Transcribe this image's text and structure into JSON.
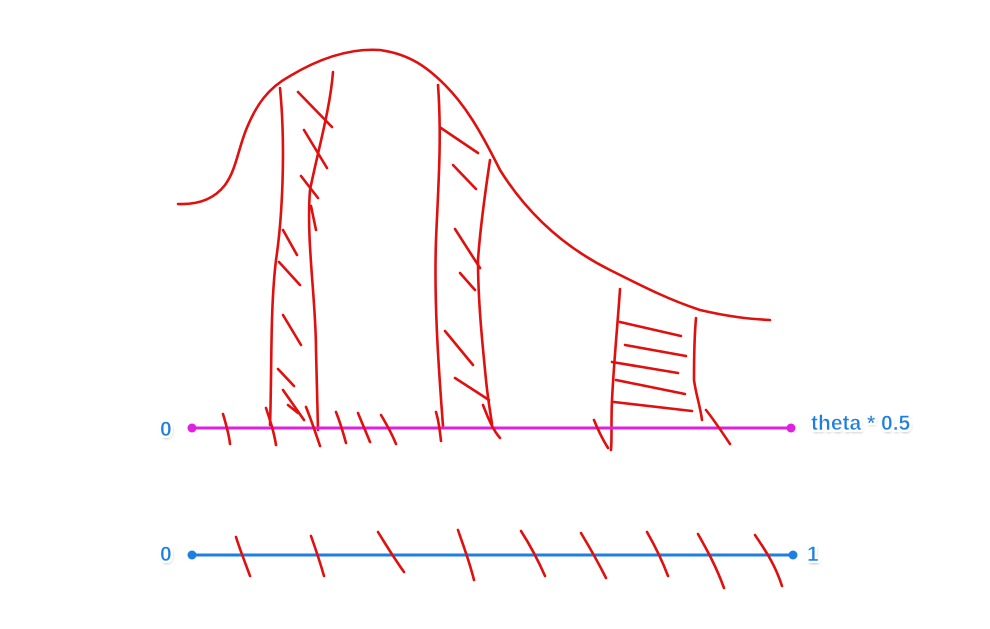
{
  "colors": {
    "sketch": "#e0100f",
    "scaled_axis": "#e020e0",
    "unit_axis": "#1f7fe0",
    "label": "#1f7fe0"
  },
  "scaled_axis": {
    "start_label": "0",
    "end_label": "theta * 0.5"
  },
  "unit_axis": {
    "start_label": "0",
    "end_label": "1"
  }
}
